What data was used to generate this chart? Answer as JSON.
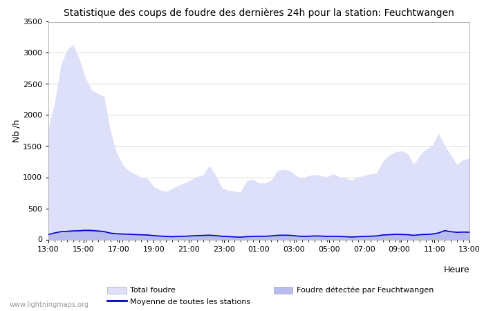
{
  "title": "Statistique des coups de foudre des dernières 24h pour la station: Feuchtwangen",
  "ylabel": "Nb /h",
  "xlabel": "Heure",
  "watermark": "www.lightningmaps.org",
  "ylim": [
    0,
    3500
  ],
  "x_labels": [
    "13:00",
    "15:00",
    "17:00",
    "19:00",
    "21:00",
    "23:00",
    "01:00",
    "03:00",
    "05:00",
    "07:00",
    "09:00",
    "11:00",
    "13:00"
  ],
  "total_foudre_color": "#dde0f8",
  "feuchtwangen_color": "#b8bcee",
  "moyenne_color": "#0000cc",
  "background_color": "#ffffff",
  "total_foudre": [
    1800,
    2200,
    2800,
    3050,
    3130,
    2900,
    2600,
    2400,
    2350,
    2300,
    1750,
    1400,
    1200,
    1100,
    1050,
    1000,
    980,
    850,
    800,
    770,
    820,
    870,
    910,
    960,
    1010,
    1040,
    1190,
    1030,
    830,
    790,
    780,
    760,
    940,
    970,
    910,
    905,
    955,
    1110,
    1125,
    1105,
    1025,
    985,
    1025,
    1045,
    1025,
    1005,
    1055,
    1005,
    985,
    955,
    1005,
    1025,
    1055,
    1065,
    1255,
    1355,
    1405,
    1425,
    1385,
    1205,
    1355,
    1455,
    1505,
    1710,
    1510,
    1355,
    1205,
    1285,
    1305
  ],
  "feuchtwangen": [
    80,
    100,
    130,
    150,
    160,
    165,
    175,
    170,
    160,
    148,
    118,
    108,
    100,
    97,
    92,
    88,
    83,
    73,
    65,
    57,
    52,
    57,
    62,
    67,
    72,
    77,
    82,
    72,
    62,
    55,
    49,
    45,
    52,
    57,
    62,
    62,
    67,
    77,
    82,
    77,
    67,
    57,
    62,
    67,
    65,
    57,
    62,
    57,
    52,
    47,
    52,
    57,
    62,
    67,
    82,
    87,
    92,
    92,
    87,
    77,
    87,
    92,
    97,
    117,
    157,
    137,
    127,
    132,
    127
  ],
  "moyenne": [
    80,
    105,
    125,
    130,
    137,
    140,
    145,
    143,
    136,
    126,
    102,
    92,
    87,
    85,
    79,
    75,
    72,
    62,
    55,
    49,
    45,
    49,
    52,
    57,
    62,
    65,
    69,
    62,
    52,
    47,
    41,
    37,
    45,
    49,
    52,
    52,
    57,
    67,
    69,
    67,
    57,
    49,
    52,
    57,
    55,
    49,
    52,
    49,
    45,
    39,
    45,
    49,
    52,
    57,
    72,
    77,
    82,
    81,
    77,
    67,
    77,
    82,
    87,
    105,
    142,
    125,
    115,
    119,
    117
  ],
  "n_points": 69
}
